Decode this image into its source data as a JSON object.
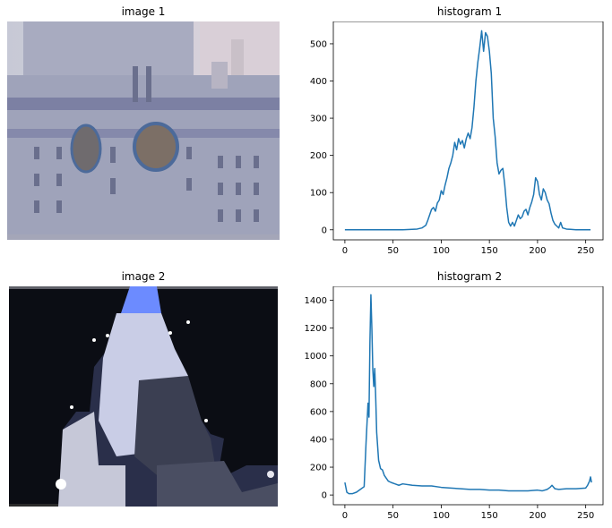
{
  "image1": {
    "title": "image 1"
  },
  "image2": {
    "title": "image 2"
  },
  "chart_data": [
    {
      "type": "line",
      "title": "histogram 1",
      "xlabel": "",
      "ylabel": "",
      "xlim": [
        -12,
        268
      ],
      "ylim": [
        -27,
        560
      ],
      "xticks": [
        0,
        50,
        100,
        150,
        200,
        250
      ],
      "yticks": [
        0,
        100,
        200,
        300,
        400,
        500
      ],
      "grid": false,
      "color": "#1f77b4",
      "series": [
        {
          "x": [
            0,
            60,
            75,
            80,
            84,
            86,
            88,
            90,
            92,
            94,
            96,
            98,
            100,
            102,
            104,
            106,
            108,
            110,
            112,
            114,
            116,
            118,
            120,
            122,
            124,
            126,
            128,
            130,
            132,
            134,
            136,
            138,
            140,
            142,
            144,
            146,
            148,
            150,
            152,
            154,
            156,
            158,
            160,
            162,
            164,
            166,
            168,
            170,
            172,
            174,
            176,
            178,
            180,
            182,
            184,
            186,
            188,
            190,
            192,
            194,
            196,
            198,
            200,
            202,
            204,
            206,
            208,
            210,
            212,
            214,
            216,
            218,
            220,
            222,
            224,
            226,
            230,
            240,
            255
          ],
          "values": [
            0,
            0,
            2,
            5,
            12,
            25,
            40,
            55,
            60,
            50,
            72,
            80,
            105,
            95,
            120,
            140,
            165,
            180,
            200,
            235,
            215,
            245,
            230,
            240,
            220,
            245,
            260,
            245,
            275,
            330,
            400,
            450,
            490,
            535,
            480,
            530,
            520,
            480,
            420,
            300,
            250,
            180,
            150,
            160,
            165,
            120,
            60,
            20,
            10,
            20,
            10,
            25,
            40,
            30,
            35,
            50,
            55,
            40,
            60,
            75,
            95,
            140,
            130,
            95,
            80,
            110,
            100,
            80,
            70,
            45,
            25,
            15,
            10,
            5,
            20,
            5,
            2,
            0,
            0
          ]
        }
      ]
    },
    {
      "type": "line",
      "title": "histogram 2",
      "xlabel": "",
      "ylabel": "",
      "xlim": [
        -12,
        268
      ],
      "ylim": [
        -70,
        1500
      ],
      "xticks": [
        0,
        50,
        100,
        150,
        200,
        250
      ],
      "yticks": [
        0,
        200,
        400,
        600,
        800,
        1000,
        1200,
        1400
      ],
      "grid": false,
      "color": "#1f77b4",
      "series": [
        {
          "x": [
            0,
            2,
            4,
            8,
            12,
            16,
            20,
            22,
            24,
            25,
            26,
            27,
            28,
            29,
            30,
            31,
            32,
            33,
            35,
            37,
            39,
            41,
            43,
            45,
            48,
            52,
            56,
            60,
            70,
            80,
            90,
            100,
            110,
            120,
            130,
            140,
            150,
            160,
            170,
            180,
            190,
            200,
            205,
            210,
            213,
            215,
            218,
            222,
            230,
            240,
            250,
            252,
            254,
            255,
            256
          ],
          "values": [
            90,
            20,
            10,
            10,
            20,
            40,
            60,
            380,
            660,
            560,
            1100,
            1440,
            1200,
            900,
            780,
            910,
            700,
            450,
            250,
            190,
            180,
            140,
            120,
            100,
            90,
            80,
            70,
            80,
            70,
            65,
            65,
            55,
            50,
            45,
            40,
            40,
            35,
            35,
            30,
            30,
            30,
            35,
            30,
            40,
            55,
            70,
            45,
            40,
            45,
            45,
            50,
            70,
            100,
            130,
            90
          ]
        }
      ]
    }
  ]
}
